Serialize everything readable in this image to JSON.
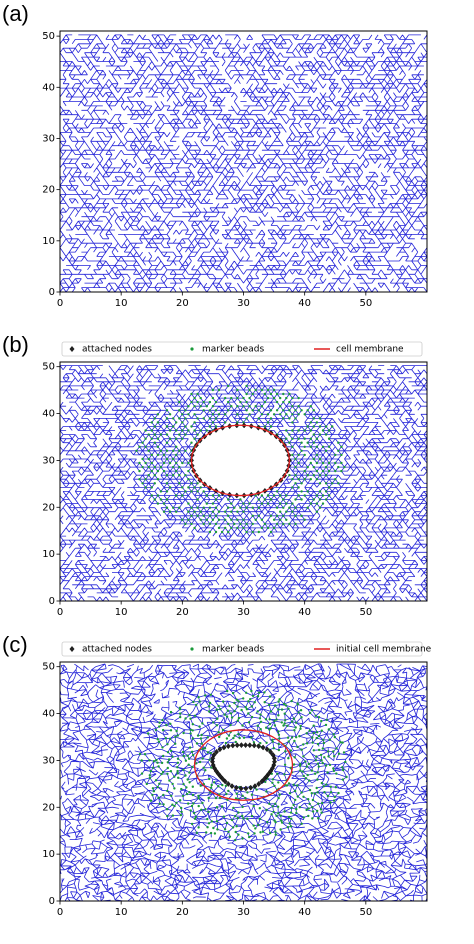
{
  "chart_data": [
    {
      "type": "network",
      "panel_label": "(a)",
      "xlim": [
        0,
        60
      ],
      "ylim": [
        0,
        51
      ],
      "xticks": [
        0,
        10,
        20,
        30,
        40,
        50
      ],
      "yticks": [
        0,
        10,
        20,
        30,
        40,
        50
      ],
      "color": "#2323d8"
    },
    {
      "type": "network",
      "panel_label": "(b)",
      "xlim": [
        0,
        60
      ],
      "ylim": [
        0,
        51
      ],
      "xticks": [
        0,
        10,
        20,
        30,
        40,
        50
      ],
      "yticks": [
        0,
        10,
        20,
        30,
        40,
        50
      ],
      "color": "#2323d8",
      "membrane": {
        "cx": 29.5,
        "cy": 30,
        "rx": 8,
        "ry": 7.5
      },
      "series": [
        {
          "name": "attached nodes",
          "color": "#222222",
          "marker": "diamond"
        },
        {
          "name": "marker beads",
          "color": "#1a9a3a",
          "marker": "dot"
        },
        {
          "name": "cell membrane",
          "color": "#e02020",
          "marker": "line"
        }
      ]
    },
    {
      "type": "network",
      "panel_label": "(c)",
      "xlim": [
        0,
        60
      ],
      "ylim": [
        0,
        51
      ],
      "xticks": [
        0,
        10,
        20,
        30,
        40,
        50
      ],
      "yticks": [
        0,
        10,
        20,
        30,
        40,
        50
      ],
      "color": "#2323d8",
      "membrane": {
        "cx": 30,
        "cy": 29,
        "rx": 8,
        "ry": 7.5
      },
      "series": [
        {
          "name": "attached nodes",
          "color": "#222222",
          "marker": "diamond"
        },
        {
          "name": "marker beads",
          "color": "#1a9a3a",
          "marker": "dot"
        },
        {
          "name": "initial cell membrane",
          "color": "#e02020",
          "marker": "line"
        }
      ]
    }
  ]
}
